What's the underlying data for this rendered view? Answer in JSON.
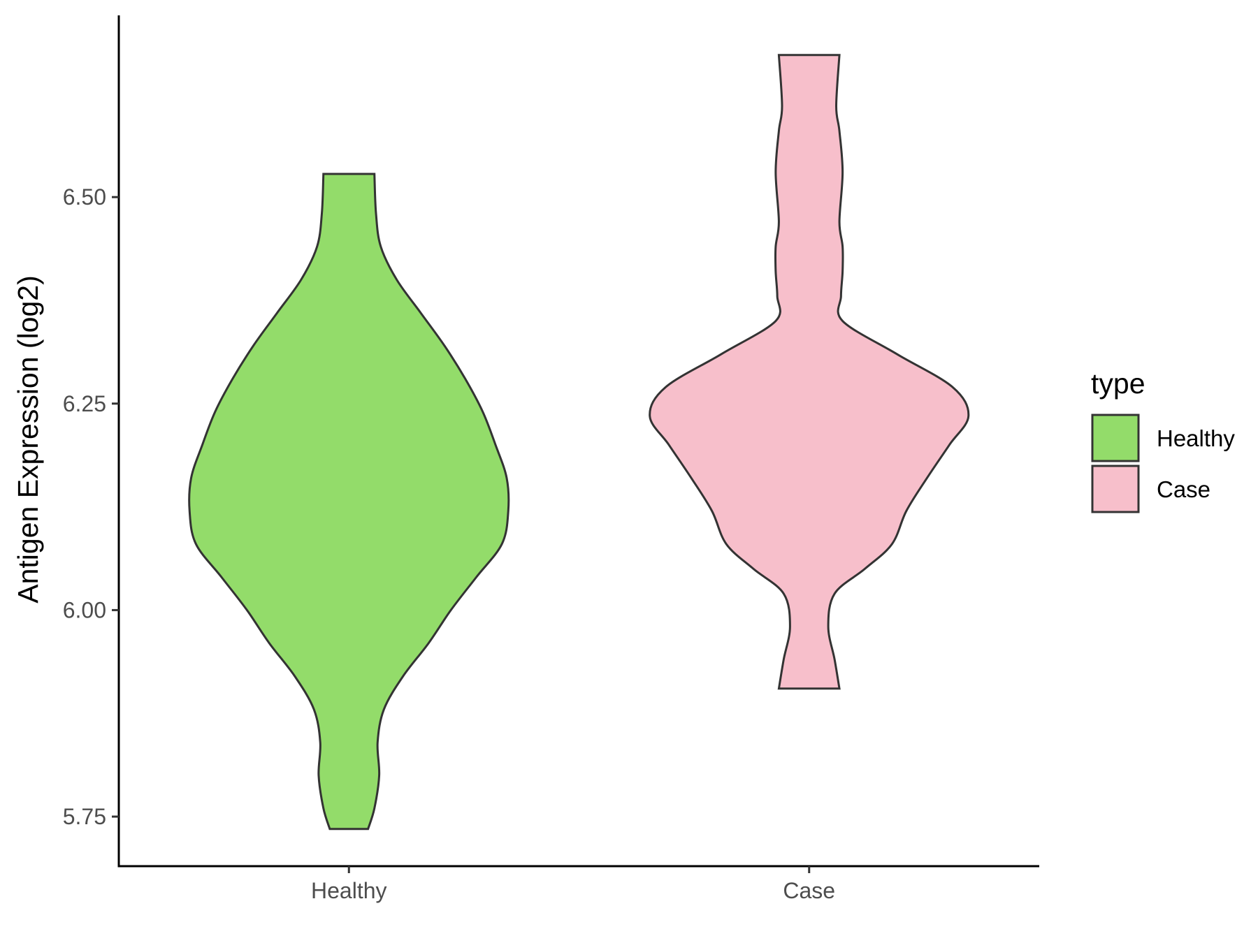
{
  "chart_data": {
    "type": "violin",
    "title": "",
    "xlabel": "",
    "ylabel": "Antigen Expression (log2)",
    "ylim": [
      5.69,
      6.72
    ],
    "yticks": [
      5.75,
      6.0,
      6.25,
      6.5
    ],
    "ytick_labels": [
      "5.75",
      "6.00",
      "6.25",
      "6.50"
    ],
    "categories": [
      "Healthy",
      "Case"
    ],
    "series": [
      {
        "name": "Healthy",
        "color": "#93dc6a",
        "min": 5.735,
        "max": 6.528,
        "density_profile": [
          [
            5.735,
            0.12
          ],
          [
            5.76,
            0.16
          ],
          [
            5.8,
            0.19
          ],
          [
            5.84,
            0.18
          ],
          [
            5.88,
            0.22
          ],
          [
            5.92,
            0.34
          ],
          [
            5.96,
            0.5
          ],
          [
            6.0,
            0.64
          ],
          [
            6.04,
            0.8
          ],
          [
            6.08,
            0.96
          ],
          [
            6.12,
            1.0
          ],
          [
            6.16,
            0.99
          ],
          [
            6.2,
            0.92
          ],
          [
            6.24,
            0.84
          ],
          [
            6.28,
            0.73
          ],
          [
            6.32,
            0.6
          ],
          [
            6.36,
            0.45
          ],
          [
            6.4,
            0.3
          ],
          [
            6.44,
            0.2
          ],
          [
            6.48,
            0.17
          ],
          [
            6.528,
            0.16
          ]
        ]
      },
      {
        "name": "Case",
        "color": "#f7bfcb",
        "min": 5.905,
        "max": 6.672,
        "density_profile": [
          [
            5.905,
            0.19
          ],
          [
            5.94,
            0.16
          ],
          [
            5.98,
            0.12
          ],
          [
            6.02,
            0.16
          ],
          [
            6.05,
            0.35
          ],
          [
            6.08,
            0.52
          ],
          [
            6.12,
            0.61
          ],
          [
            6.16,
            0.74
          ],
          [
            6.2,
            0.88
          ],
          [
            6.235,
            1.0
          ],
          [
            6.27,
            0.9
          ],
          [
            6.31,
            0.55
          ],
          [
            6.35,
            0.21
          ],
          [
            6.38,
            0.2
          ],
          [
            6.41,
            0.21
          ],
          [
            6.44,
            0.21
          ],
          [
            6.47,
            0.19
          ],
          [
            6.53,
            0.21
          ],
          [
            6.58,
            0.19
          ],
          [
            6.61,
            0.17
          ],
          [
            6.672,
            0.19
          ]
        ]
      }
    ],
    "legend": {
      "title": "type",
      "position": "right",
      "entries": [
        "Healthy",
        "Case"
      ]
    },
    "grid": false
  }
}
